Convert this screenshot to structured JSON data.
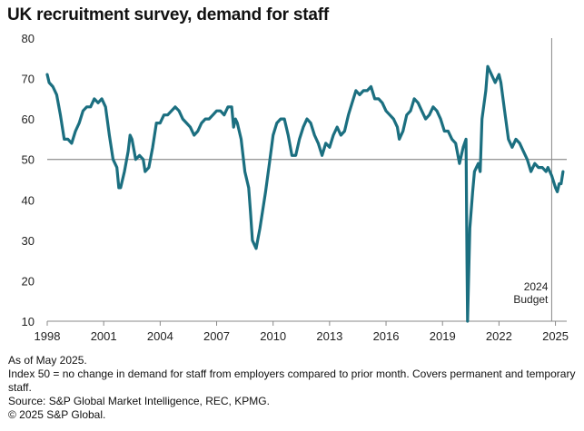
{
  "title": "UK recruitment survey, demand for staff",
  "notes": {
    "as_of": "As of May 2025.",
    "index_note": "Index 50 = no change in demand for staff from employers compared to prior month. Covers permanent and temporary staff.",
    "source": "Source: S&P Global Market Intelligence, REC, KPMG.",
    "copyright": "© 2025 S&P Global."
  },
  "colors": {
    "series": "#1b6f80",
    "axis": "#888888",
    "text": "#222222"
  },
  "chart_data": {
    "type": "line",
    "title": "UK recruitment survey, demand for staff",
    "xlabel": "",
    "ylabel": "",
    "xlim": [
      1998,
      2025.6
    ],
    "ylim": [
      10,
      80
    ],
    "x_ticks": [
      1998,
      2001,
      2004,
      2007,
      2010,
      2013,
      2016,
      2019,
      2022,
      2025
    ],
    "y_ticks": [
      10,
      20,
      30,
      40,
      50,
      60,
      70,
      80
    ],
    "reference_line": 50,
    "annotation": {
      "x": 2024.8,
      "label_lines": [
        "2024",
        "Budget"
      ]
    },
    "grid": false,
    "series": [
      {
        "name": "",
        "points": [
          [
            1998.0,
            71
          ],
          [
            1998.1,
            69
          ],
          [
            1998.3,
            68
          ],
          [
            1998.5,
            66
          ],
          [
            1998.7,
            61
          ],
          [
            1998.9,
            55
          ],
          [
            1999.1,
            55
          ],
          [
            1999.3,
            54
          ],
          [
            1999.5,
            57
          ],
          [
            1999.7,
            59
          ],
          [
            1999.9,
            62
          ],
          [
            2000.1,
            63
          ],
          [
            2000.3,
            63
          ],
          [
            2000.5,
            65
          ],
          [
            2000.7,
            64
          ],
          [
            2000.9,
            65
          ],
          [
            2001.1,
            63
          ],
          [
            2001.3,
            56
          ],
          [
            2001.5,
            50
          ],
          [
            2001.7,
            48
          ],
          [
            2001.8,
            43
          ],
          [
            2001.9,
            43
          ],
          [
            2002.1,
            47
          ],
          [
            2002.3,
            52
          ],
          [
            2002.4,
            56
          ],
          [
            2002.5,
            55
          ],
          [
            2002.7,
            50
          ],
          [
            2002.9,
            51
          ],
          [
            2003.1,
            50
          ],
          [
            2003.2,
            47
          ],
          [
            2003.4,
            48
          ],
          [
            2003.6,
            53
          ],
          [
            2003.8,
            59
          ],
          [
            2004.0,
            59
          ],
          [
            2004.2,
            61
          ],
          [
            2004.4,
            61
          ],
          [
            2004.6,
            62
          ],
          [
            2004.8,
            63
          ],
          [
            2005.0,
            62
          ],
          [
            2005.2,
            60
          ],
          [
            2005.4,
            59
          ],
          [
            2005.6,
            58
          ],
          [
            2005.8,
            56
          ],
          [
            2006.0,
            57
          ],
          [
            2006.2,
            59
          ],
          [
            2006.4,
            60
          ],
          [
            2006.6,
            60
          ],
          [
            2006.8,
            61
          ],
          [
            2007.0,
            62
          ],
          [
            2007.2,
            62
          ],
          [
            2007.4,
            61
          ],
          [
            2007.6,
            63
          ],
          [
            2007.8,
            63
          ],
          [
            2007.9,
            58
          ],
          [
            2008.0,
            60
          ],
          [
            2008.1,
            59
          ],
          [
            2008.3,
            55
          ],
          [
            2008.5,
            47
          ],
          [
            2008.7,
            43
          ],
          [
            2008.8,
            37
          ],
          [
            2008.9,
            30
          ],
          [
            2009.1,
            28
          ],
          [
            2009.3,
            33
          ],
          [
            2009.6,
            42
          ],
          [
            2009.8,
            49
          ],
          [
            2010.0,
            56
          ],
          [
            2010.2,
            59
          ],
          [
            2010.4,
            60
          ],
          [
            2010.6,
            60
          ],
          [
            2010.8,
            56
          ],
          [
            2011.0,
            51
          ],
          [
            2011.2,
            51
          ],
          [
            2011.4,
            55
          ],
          [
            2011.6,
            58
          ],
          [
            2011.8,
            60
          ],
          [
            2012.0,
            59
          ],
          [
            2012.2,
            56
          ],
          [
            2012.4,
            54
          ],
          [
            2012.6,
            51
          ],
          [
            2012.8,
            54
          ],
          [
            2013.0,
            53
          ],
          [
            2013.2,
            56
          ],
          [
            2013.4,
            58
          ],
          [
            2013.6,
            56
          ],
          [
            2013.8,
            57
          ],
          [
            2014.0,
            61
          ],
          [
            2014.2,
            64
          ],
          [
            2014.4,
            67
          ],
          [
            2014.6,
            66
          ],
          [
            2014.8,
            67
          ],
          [
            2015.0,
            67
          ],
          [
            2015.2,
            68
          ],
          [
            2015.4,
            65
          ],
          [
            2015.6,
            65
          ],
          [
            2015.8,
            64
          ],
          [
            2016.0,
            62
          ],
          [
            2016.2,
            61
          ],
          [
            2016.4,
            60
          ],
          [
            2016.6,
            58
          ],
          [
            2016.7,
            55
          ],
          [
            2016.9,
            57
          ],
          [
            2017.1,
            61
          ],
          [
            2017.3,
            62
          ],
          [
            2017.5,
            65
          ],
          [
            2017.7,
            64
          ],
          [
            2017.9,
            62
          ],
          [
            2018.1,
            60
          ],
          [
            2018.3,
            61
          ],
          [
            2018.5,
            63
          ],
          [
            2018.7,
            62
          ],
          [
            2018.9,
            60
          ],
          [
            2019.1,
            57
          ],
          [
            2019.3,
            57
          ],
          [
            2019.5,
            55
          ],
          [
            2019.7,
            54
          ],
          [
            2019.9,
            49
          ],
          [
            2020.1,
            53
          ],
          [
            2020.25,
            55
          ],
          [
            2020.3,
            24
          ],
          [
            2020.33,
            10
          ],
          [
            2020.45,
            33
          ],
          [
            2020.6,
            42
          ],
          [
            2020.7,
            47
          ],
          [
            2020.8,
            48
          ],
          [
            2020.9,
            49
          ],
          [
            2021.0,
            47
          ],
          [
            2021.1,
            60
          ],
          [
            2021.3,
            67
          ],
          [
            2021.4,
            73
          ],
          [
            2021.6,
            71
          ],
          [
            2021.8,
            69
          ],
          [
            2022.0,
            71
          ],
          [
            2022.1,
            69
          ],
          [
            2022.3,
            62
          ],
          [
            2022.5,
            55
          ],
          [
            2022.7,
            53
          ],
          [
            2022.9,
            55
          ],
          [
            2023.1,
            54
          ],
          [
            2023.3,
            52
          ],
          [
            2023.5,
            50
          ],
          [
            2023.7,
            47
          ],
          [
            2023.9,
            49
          ],
          [
            2024.1,
            48
          ],
          [
            2024.3,
            48
          ],
          [
            2024.5,
            47
          ],
          [
            2024.6,
            48
          ],
          [
            2024.8,
            46
          ],
          [
            2025.0,
            43
          ],
          [
            2025.1,
            42
          ],
          [
            2025.2,
            44
          ],
          [
            2025.3,
            44
          ],
          [
            2025.4,
            47
          ]
        ]
      }
    ]
  }
}
